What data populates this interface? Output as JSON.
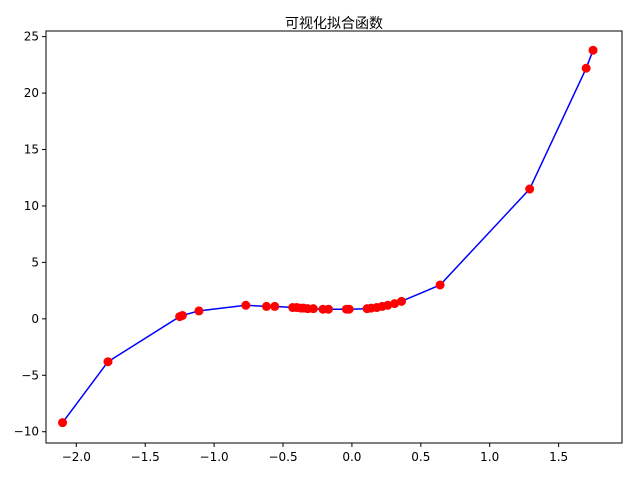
{
  "chart_data": {
    "type": "line",
    "title": "可视化拟合函数",
    "xlabel": "",
    "ylabel": "",
    "xlim": [
      -2.22,
      1.96
    ],
    "ylim": [
      -11.0,
      25.5
    ],
    "x_ticks": [
      -2.0,
      -1.5,
      -1.0,
      -0.5,
      0.0,
      0.5,
      1.0,
      1.5
    ],
    "x_tick_labels": [
      "−2.0",
      "−1.5",
      "−1.0",
      "−0.5",
      "0.0",
      "0.5",
      "1.0",
      "1.5"
    ],
    "y_ticks": [
      -10,
      -5,
      0,
      5,
      10,
      15,
      20,
      25
    ],
    "y_tick_labels": [
      "−10",
      "−5",
      "0",
      "5",
      "10",
      "15",
      "20",
      "25"
    ],
    "grid": false,
    "colors": {
      "line": "#0000ff",
      "markers": "#ff0000",
      "axes": "#000000",
      "background": "#ffffff"
    },
    "series": [
      {
        "line_x": [
          -2.1,
          -1.77,
          -1.25,
          -1.23,
          -1.11,
          -0.77,
          -0.62,
          -0.56,
          -0.43,
          -0.4,
          -0.37,
          -0.35,
          -0.32,
          -0.28,
          -0.21,
          -0.17,
          -0.04,
          -0.02,
          0.11,
          0.14,
          0.18,
          0.22,
          0.26,
          0.31,
          0.36,
          0.64,
          1.29,
          1.7,
          1.75
        ],
        "line_y": [
          -9.2,
          -3.8,
          0.2,
          0.3,
          0.7,
          1.2,
          1.1,
          1.1,
          1.0,
          1.0,
          0.95,
          0.95,
          0.9,
          0.9,
          0.85,
          0.85,
          0.85,
          0.85,
          0.9,
          0.95,
          1.0,
          1.1,
          1.2,
          1.35,
          1.55,
          3.0,
          11.5,
          22.2,
          23.8
        ]
      },
      {
        "scatter_x": [
          -2.1,
          -1.77,
          -1.25,
          -1.23,
          -1.11,
          -0.77,
          -0.62,
          -0.56,
          -0.43,
          -0.4,
          -0.37,
          -0.35,
          -0.32,
          -0.28,
          -0.21,
          -0.17,
          -0.04,
          -0.02,
          0.11,
          0.14,
          0.18,
          0.22,
          0.26,
          0.31,
          0.36,
          0.64,
          1.29,
          1.7,
          1.75
        ],
        "scatter_y": [
          -9.2,
          -3.8,
          0.2,
          0.3,
          0.7,
          1.2,
          1.1,
          1.1,
          1.0,
          1.0,
          0.95,
          0.95,
          0.9,
          0.9,
          0.85,
          0.85,
          0.85,
          0.85,
          0.9,
          0.95,
          1.0,
          1.1,
          1.2,
          1.35,
          1.55,
          3.0,
          11.5,
          22.2,
          23.8
        ]
      }
    ]
  }
}
